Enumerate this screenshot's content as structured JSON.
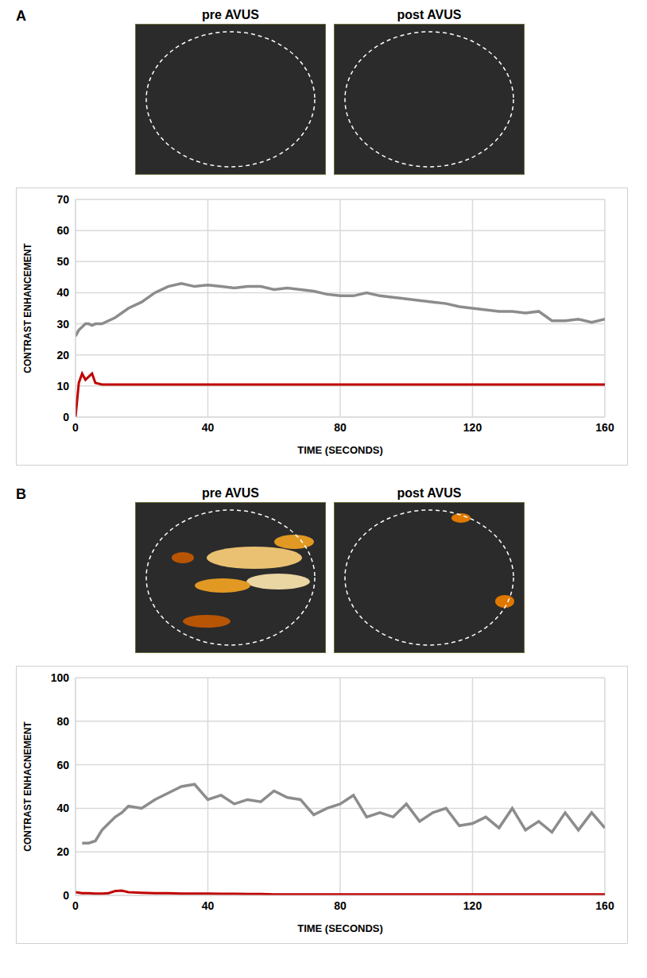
{
  "chart_data": [
    {
      "type": "line",
      "panel_label": "A",
      "image_titles": [
        "pre AVUS",
        "post AVUS"
      ],
      "x_label": "TIME (SECONDS)",
      "y_label": "CONTRAST ENHANCEMENT",
      "x": [
        0,
        1,
        2,
        3,
        4,
        5,
        6,
        8,
        12,
        16,
        20,
        24,
        28,
        32,
        36,
        40,
        44,
        48,
        52,
        56,
        60,
        64,
        68,
        72,
        76,
        80,
        84,
        88,
        92,
        96,
        100,
        104,
        108,
        112,
        116,
        120,
        124,
        128,
        132,
        136,
        140,
        144,
        148,
        152,
        156,
        160
      ],
      "series": [
        {
          "color": "#8c8c8c",
          "values": [
            26,
            28,
            29,
            30,
            30,
            29.5,
            30,
            30,
            32,
            35,
            37,
            40,
            42,
            43,
            42,
            42.5,
            42,
            41.5,
            42,
            42,
            41,
            41.5,
            41,
            40.5,
            39.5,
            39,
            39,
            40,
            39,
            38.5,
            38,
            37.5,
            37,
            36.5,
            35.5,
            35,
            34.5,
            34,
            34,
            33.5,
            34,
            31,
            31,
            31.5,
            30.5,
            31.5
          ]
        },
        {
          "color": "#c00000",
          "values": [
            0,
            11,
            14,
            12,
            13,
            14,
            11,
            10.5,
            10.5,
            10.5,
            10.5,
            10.5,
            10.5,
            10.5,
            10.5,
            10.5,
            10.5,
            10.5,
            10.5,
            10.5,
            10.5,
            10.5,
            10.5,
            10.5,
            10.5,
            10.5,
            10.5,
            10.5,
            10.5,
            10.5,
            10.5,
            10.5,
            10.5,
            10.5,
            10.5,
            10.5,
            10.5,
            10.5,
            10.5,
            10.5,
            10.5,
            10.5,
            10.5,
            10.5,
            10.5,
            10.5
          ]
        }
      ],
      "xlim": [
        0,
        160
      ],
      "xticks": [
        0,
        40,
        80,
        120,
        160
      ],
      "ylim": [
        0,
        70
      ],
      "yticks": [
        0,
        10,
        20,
        30,
        40,
        50,
        60,
        70
      ],
      "grid": true
    },
    {
      "type": "line",
      "panel_label": "B",
      "image_titles": [
        "pre AVUS",
        "post AVUS"
      ],
      "x_label": "TIME (SECONDS)",
      "y_label": "CONTRAST ENHACNEMENT",
      "x": [
        0,
        2,
        4,
        6,
        8,
        10,
        12,
        14,
        16,
        20,
        24,
        28,
        32,
        36,
        40,
        44,
        48,
        52,
        56,
        60,
        64,
        68,
        72,
        76,
        80,
        84,
        88,
        92,
        96,
        100,
        104,
        108,
        112,
        116,
        120,
        124,
        128,
        132,
        136,
        140,
        144,
        148,
        152,
        156,
        160
      ],
      "series": [
        {
          "color": "#8c8c8c",
          "values": [
            null,
            24,
            24,
            25,
            30,
            33,
            36,
            38,
            41,
            40,
            44,
            47,
            50,
            51,
            44,
            46,
            42,
            44,
            43,
            48,
            45,
            44,
            37,
            40,
            42,
            46,
            36,
            38,
            36,
            42,
            34,
            38,
            40,
            32,
            33,
            36,
            31,
            40,
            30,
            34,
            29,
            38,
            30,
            38,
            31
          ]
        },
        {
          "color": "#c00000",
          "values": [
            1.5,
            1,
            1,
            0.8,
            0.8,
            1,
            2,
            2.2,
            1.5,
            1.2,
            1,
            1,
            0.8,
            0.8,
            0.8,
            0.7,
            0.7,
            0.6,
            0.6,
            0.5,
            0.5,
            0.5,
            0.5,
            0.5,
            0.5,
            0.5,
            0.5,
            0.5,
            0.5,
            0.5,
            0.5,
            0.5,
            0.5,
            0.5,
            0.5,
            0.5,
            0.5,
            0.5,
            0.5,
            0.5,
            0.5,
            0.5,
            0.5,
            0.5,
            0.5
          ]
        }
      ],
      "xlim": [
        0,
        160
      ],
      "xticks": [
        0,
        40,
        80,
        120,
        160
      ],
      "ylim": [
        0,
        100
      ],
      "yticks": [
        0,
        20,
        40,
        60,
        80,
        100
      ],
      "grid": true
    }
  ]
}
